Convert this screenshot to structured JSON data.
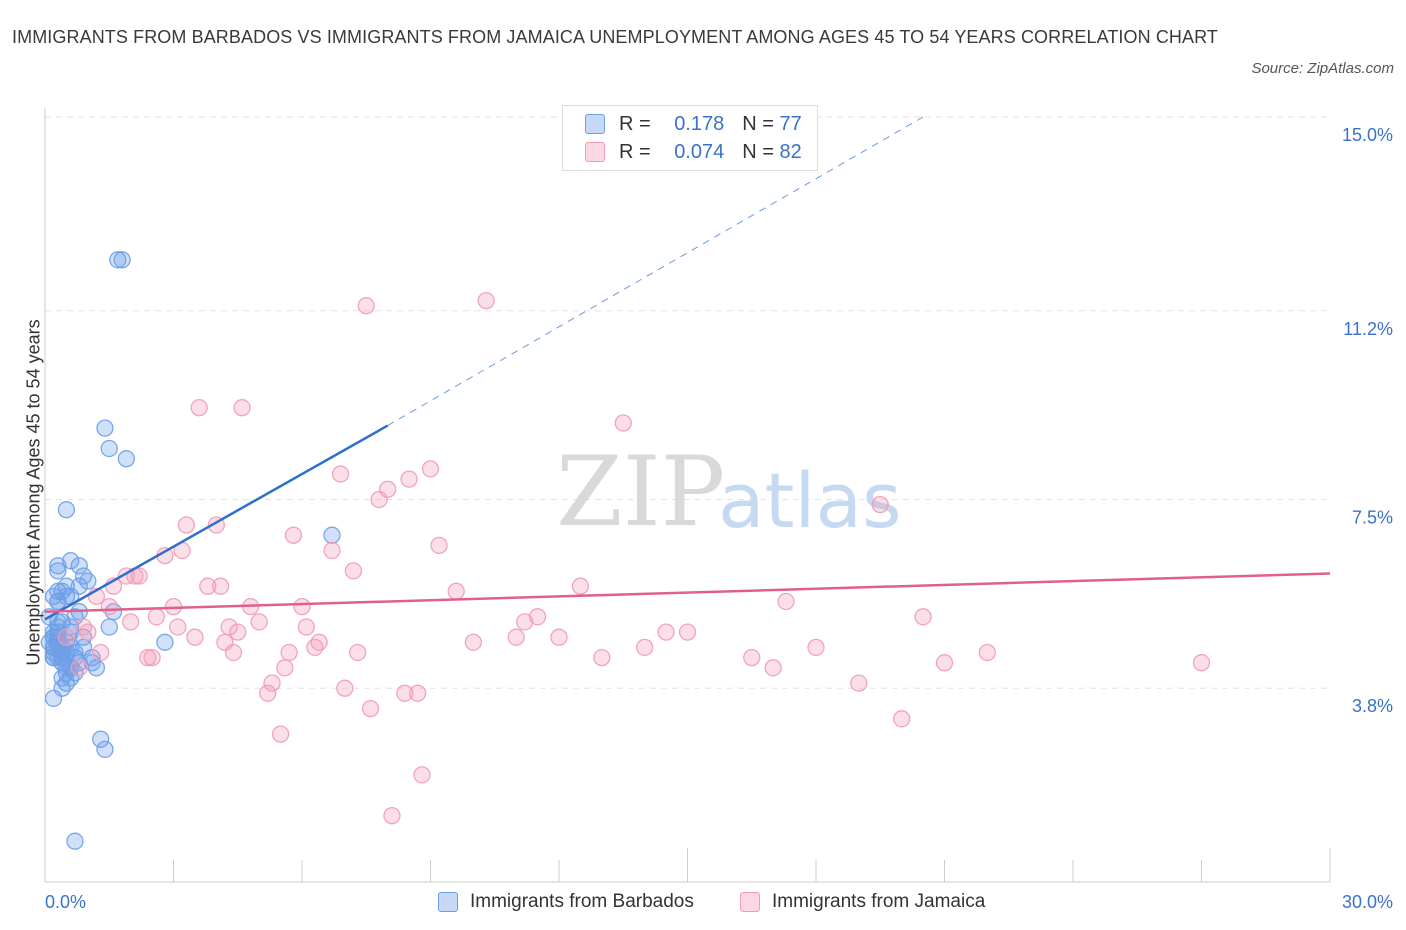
{
  "title": "IMMIGRANTS FROM BARBADOS VS IMMIGRANTS FROM JAMAICA UNEMPLOYMENT AMONG AGES 45 TO 54 YEARS CORRELATION CHART",
  "source": "Source: ZipAtlas.com",
  "watermark": {
    "zip": "ZIP",
    "atlas": "atlas"
  },
  "legend": {
    "r_label": "R =",
    "n_label": "N =",
    "rows": [
      {
        "r": "0.178",
        "n": "77",
        "color": "#6d9ee8"
      },
      {
        "r": "0.074",
        "n": "82",
        "color": "#f29ab6"
      }
    ]
  },
  "chart_data": {
    "type": "scatter",
    "title": "IMMIGRANTS FROM BARBADOS VS IMMIGRANTS FROM JAMAICA UNEMPLOYMENT AMONG AGES 45 TO 54 YEARS CORRELATION CHART",
    "xlabel": "",
    "ylabel": "Unemployment Among Ages 45 to 54 years",
    "xlim": [
      0,
      30
    ],
    "ylim": [
      0,
      15
    ],
    "x_tick_labels": [
      "0.0%",
      "30.0%"
    ],
    "y_ticks": [
      3.8,
      7.5,
      11.2,
      15.0
    ],
    "y_tick_labels": [
      "3.8%",
      "7.5%",
      "11.2%",
      "15.0%"
    ],
    "grid": true,
    "legend_position": "top-center",
    "series": [
      {
        "name": "Immigrants from Barbados",
        "color": "#6d9ee8",
        "line_color": "#2e6fce",
        "trend": {
          "x": [
            0.0,
            8.0
          ],
          "y": [
            5.15,
            8.95
          ]
        },
        "trend_extension": {
          "x": [
            8.0,
            20.5
          ],
          "y": [
            8.95,
            15.0
          ]
        },
        "x": [
          0.2,
          0.5,
          0.3,
          0.7,
          0.4,
          1.1,
          0.6,
          0.8,
          0.2,
          0.5,
          0.9,
          0.3,
          1.0,
          0.6,
          0.4,
          0.7,
          0.3,
          0.1,
          0.5,
          0.8,
          0.2,
          0.6,
          1.2,
          0.4,
          0.9,
          0.3,
          0.5,
          0.7,
          0.2,
          0.4,
          1.5,
          1.4,
          0.3,
          0.6,
          0.8,
          0.5,
          0.2,
          0.4,
          0.7,
          0.3,
          1.3,
          1.7,
          1.8,
          0.2,
          0.5,
          0.9,
          0.3,
          0.1,
          0.6,
          1.9,
          0.4,
          0.2,
          0.8,
          0.3,
          0.5,
          0.6,
          0.4,
          1.4,
          0.7,
          0.2,
          0.3,
          0.5,
          0.3,
          0.2,
          0.6,
          0.4,
          2.8,
          6.7,
          0.3,
          0.5,
          0.6,
          0.2,
          1.1,
          1.5,
          1.6,
          0.3,
          0.4
        ],
        "y": [
          4.6,
          4.7,
          5.0,
          4.5,
          4.3,
          4.4,
          4.2,
          5.3,
          5.6,
          5.8,
          4.8,
          6.1,
          5.9,
          4.9,
          4.6,
          4.1,
          4.4,
          4.7,
          3.9,
          4.3,
          4.8,
          5.0,
          4.2,
          5.7,
          6.0,
          5.5,
          4.5,
          4.4,
          3.6,
          3.8,
          8.5,
          8.9,
          5.5,
          6.3,
          6.2,
          7.3,
          4.9,
          5.1,
          5.2,
          4.7,
          2.8,
          12.2,
          12.2,
          4.4,
          4.5,
          4.6,
          6.2,
          5.2,
          4.0,
          8.3,
          4.3,
          4.8,
          5.8,
          5.1,
          5.6,
          4.6,
          4.0,
          2.6,
          0.8,
          4.5,
          4.9,
          4.2,
          5.7,
          4.6,
          5.6,
          4.4,
          4.7,
          6.8,
          4.8,
          4.1,
          4.2,
          4.4,
          4.3,
          5.0,
          5.3,
          4.6,
          4.5
        ]
      },
      {
        "name": "Immigrants from Jamaica",
        "color": "#f29ab6",
        "line_color": "#e0608b",
        "trend": {
          "x": [
            0.0,
            30.0
          ],
          "y": [
            5.3,
            6.05
          ]
        },
        "x": [
          0.5,
          1.0,
          1.2,
          1.6,
          2.0,
          2.4,
          2.6,
          3.0,
          3.2,
          3.5,
          3.8,
          4.0,
          4.2,
          4.5,
          4.8,
          5.0,
          5.3,
          5.6,
          5.8,
          6.1,
          6.4,
          6.7,
          7.0,
          7.3,
          7.6,
          8.0,
          8.4,
          8.8,
          9.2,
          9.6,
          10.0,
          11.0,
          11.5,
          12.0,
          12.5,
          13.0,
          14.0,
          14.5,
          15.0,
          16.5,
          17.0,
          18.0,
          19.0,
          20.0,
          20.5,
          21.0,
          22.0,
          1.5,
          2.2,
          2.8,
          3.3,
          3.6,
          4.1,
          4.4,
          5.2,
          5.5,
          6.0,
          6.3,
          6.9,
          7.5,
          8.1,
          8.7,
          9.0,
          10.3,
          0.8,
          1.3,
          1.9,
          2.5,
          3.1,
          4.3,
          5.7,
          7.2,
          8.5,
          11.2,
          13.5,
          17.3,
          19.5,
          27.0,
          0.9,
          2.1,
          4.6,
          7.8
        ],
        "y": [
          4.8,
          4.9,
          5.6,
          5.8,
          5.1,
          4.4,
          5.2,
          5.4,
          6.5,
          4.8,
          5.8,
          7.0,
          4.7,
          4.9,
          5.4,
          5.1,
          3.9,
          4.2,
          6.8,
          5.0,
          4.7,
          6.5,
          3.8,
          4.5,
          3.4,
          7.7,
          3.7,
          2.1,
          6.6,
          5.7,
          4.7,
          4.8,
          5.2,
          4.8,
          5.8,
          4.4,
          4.6,
          4.9,
          4.9,
          4.4,
          4.2,
          4.6,
          3.9,
          3.2,
          5.2,
          4.3,
          4.5,
          5.4,
          6.0,
          6.4,
          7.0,
          9.3,
          5.8,
          4.5,
          3.7,
          2.9,
          5.4,
          4.6,
          8.0,
          11.3,
          1.3,
          3.7,
          8.1,
          11.4,
          4.2,
          4.5,
          6.0,
          4.4,
          5.0,
          5.0,
          4.5,
          6.1,
          7.9,
          5.1,
          9.0,
          5.5,
          7.4,
          4.3,
          5.0,
          6.0,
          9.3,
          7.5
        ]
      }
    ]
  },
  "bottom_legend": [
    {
      "label": "Immigrants from Barbados",
      "color": "#6d9ee8"
    },
    {
      "label": "Immigrants from Jamaica",
      "color": "#f29ab6"
    }
  ],
  "colors": {
    "accent": "#3a72c9",
    "grid": "#e3e3e3",
    "axis": "#cccccc"
  }
}
